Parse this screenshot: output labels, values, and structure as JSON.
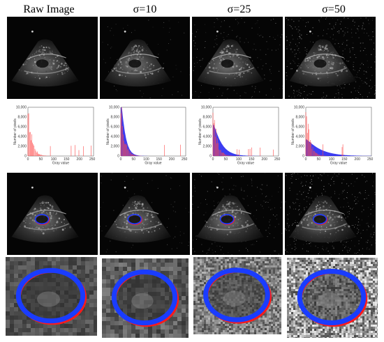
{
  "columns": [
    {
      "title": "Raw Image",
      "noise": 0
    },
    {
      "title": "σ=10",
      "noise": 10
    },
    {
      "title": "σ=25",
      "noise": 25
    },
    {
      "title": "σ=50",
      "noise": 50
    }
  ],
  "histogram": {
    "ylabel": "Number of pixels",
    "xlabel": "Gray value",
    "xticks": [
      "0",
      "50",
      "100",
      "150",
      "200",
      "250"
    ],
    "yticks": [
      "10,000",
      "8,000",
      "6,000",
      "4,000",
      "2,000",
      "0"
    ],
    "raw_color": "#ff4a4a",
    "noisy_color": "#1a1aee"
  },
  "colors": {
    "contour_blue": "#1a3cff",
    "contour_red": "#ff1a1a",
    "background": "#000000"
  }
}
